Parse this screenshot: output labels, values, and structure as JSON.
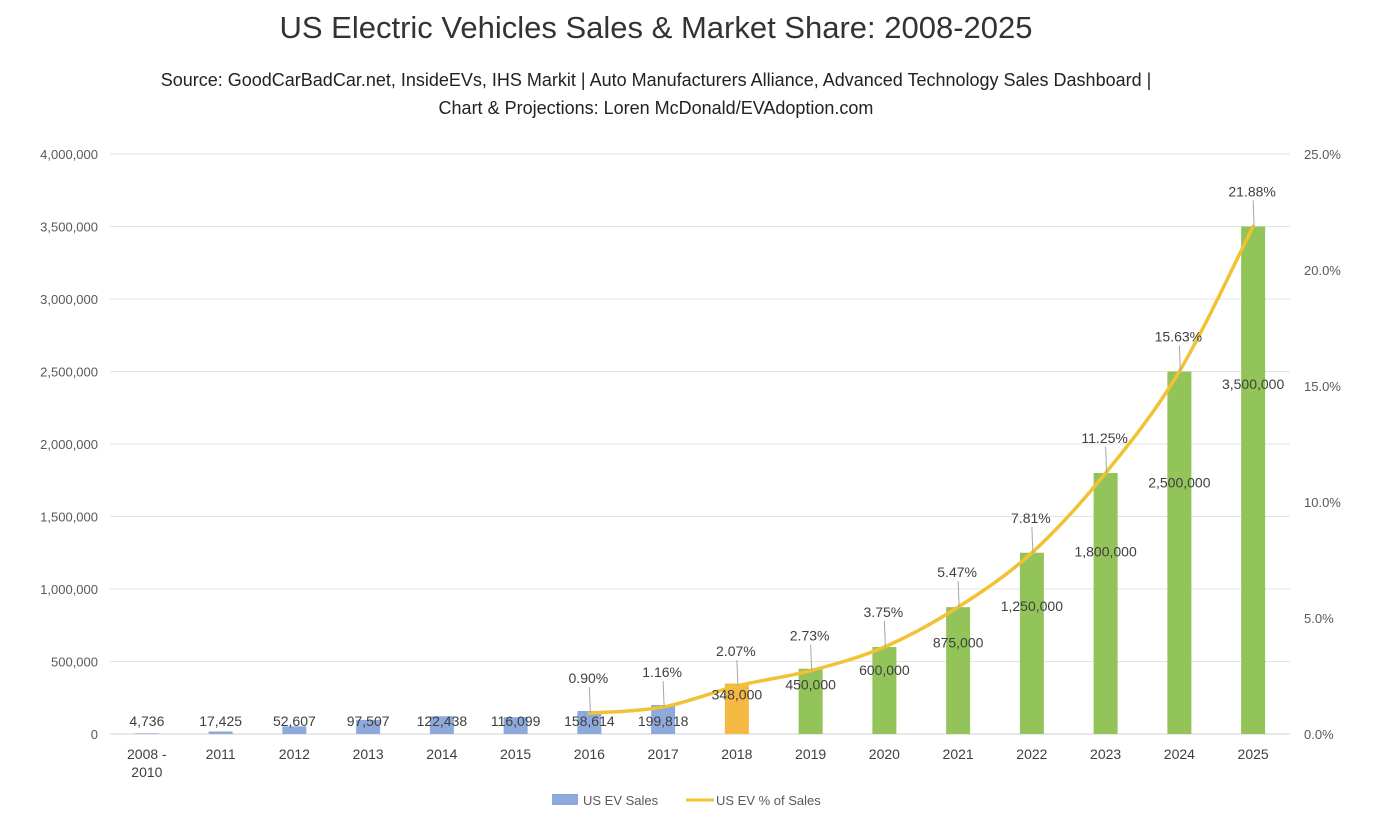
{
  "title": "US Electric Vehicles Sales & Market Share: 2008-2025",
  "subtitle_line1": "Source: GoodCarBadCar.net, InsideEVs, IHS Markit | Auto Manufacturers Alliance, Advanced Technology Sales Dashboard |",
  "subtitle_line2": "Chart & Projections: Loren McDonald/EVAdoption.com",
  "chart_data": {
    "type": "bar",
    "categories": [
      "2008 -\n2010",
      "2011",
      "2012",
      "2013",
      "2014",
      "2015",
      "2016",
      "2017",
      "2018",
      "2019",
      "2020",
      "2021",
      "2022",
      "2023",
      "2024",
      "2025"
    ],
    "series": [
      {
        "name": "US EV Sales",
        "type": "bar",
        "axis": "left",
        "values": [
          4736,
          17425,
          52607,
          97507,
          122438,
          116099,
          158614,
          199818,
          348000,
          450000,
          600000,
          875000,
          1250000,
          1800000,
          2500000,
          3500000
        ],
        "labels": [
          "4,736",
          "17,425",
          "52,607",
          "97,507",
          "122,438",
          "116,099",
          "158,614",
          "199,818",
          "348,000",
          "450,000",
          "600,000",
          "875,000",
          "1,250,000",
          "1,800,000",
          "2,500,000",
          "3,500,000"
        ],
        "colors": [
          "#8ea9db",
          "#8ea9db",
          "#8ea9db",
          "#8ea9db",
          "#8ea9db",
          "#8ea9db",
          "#8ea9db",
          "#8ea9db",
          "#f4b942",
          "#92c45a",
          "#92c45a",
          "#92c45a",
          "#92c45a",
          "#92c45a",
          "#92c45a",
          "#92c45a"
        ]
      },
      {
        "name": "US EV % of Sales",
        "type": "line",
        "axis": "right",
        "color": "#f0c234",
        "values": [
          null,
          null,
          null,
          null,
          null,
          null,
          0.9,
          1.16,
          2.07,
          2.73,
          3.75,
          5.47,
          7.81,
          11.25,
          15.63,
          21.88
        ],
        "labels": [
          "",
          "",
          "",
          "",
          "",
          "",
          "0.90%",
          "1.16%",
          "2.07%",
          "2.73%",
          "3.75%",
          "5.47%",
          "7.81%",
          "11.25%",
          "15.63%",
          "21.88%"
        ]
      }
    ],
    "y_left": {
      "range": [
        0,
        4000000
      ],
      "ticks": [
        "0",
        "500,000",
        "1,000,000",
        "1,500,000",
        "2,000,000",
        "2,500,000",
        "3,000,000",
        "3,500,000",
        "4,000,000"
      ]
    },
    "y_right": {
      "range": [
        0,
        25
      ],
      "ticks": [
        "0.0%",
        "5.0%",
        "10.0%",
        "15.0%",
        "20.0%",
        "25.0%"
      ]
    },
    "grid": true,
    "legend_position": "bottom"
  }
}
